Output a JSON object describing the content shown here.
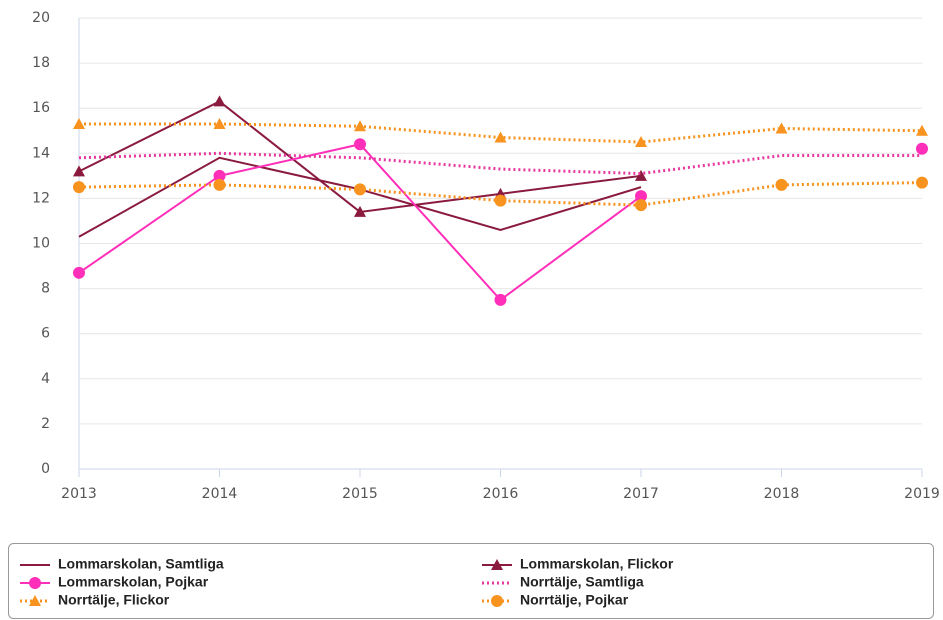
{
  "chart_data": {
    "type": "line",
    "x": [
      2013,
      2014,
      2015,
      2016,
      2017,
      2018,
      2019
    ],
    "xlim": [
      2013,
      2019
    ],
    "xticks": [
      2013,
      2014,
      2015,
      2016,
      2017,
      2018,
      2019
    ],
    "ylim": [
      0,
      20
    ],
    "yticks": [
      0,
      2,
      4,
      6,
      8,
      10,
      12,
      14,
      16,
      18,
      20
    ],
    "grid": true,
    "legend": "bottom",
    "series": [
      {
        "name": "Lommarskolan, Samtliga",
        "color": "#8b1a3f",
        "line_style": "solid",
        "marker": "none",
        "values": [
          10.3,
          13.8,
          12.4,
          10.6,
          12.5,
          null,
          null
        ]
      },
      {
        "name": "Lommarskolan, Flickor",
        "color": "#8b1a3f",
        "line_style": "solid",
        "marker": "triangle",
        "values": [
          13.2,
          16.3,
          11.4,
          12.2,
          13.0,
          null,
          null
        ]
      },
      {
        "name": "Lommarskolan, Pojkar",
        "color": "#ff2fb9",
        "line_style": "solid",
        "marker": "circle",
        "values": [
          8.7,
          13.0,
          14.4,
          7.5,
          12.1,
          null,
          14.2
        ]
      },
      {
        "name": "Norrtälje, Samtliga",
        "color": "#e8389f",
        "line_style": "dotted",
        "marker": "none",
        "values": [
          13.8,
          14.0,
          13.8,
          13.3,
          13.1,
          13.9,
          13.9
        ]
      },
      {
        "name": "Norrtälje, Flickor",
        "color": "#f7931e",
        "line_style": "dotted",
        "marker": "triangle",
        "values": [
          15.3,
          15.3,
          15.2,
          14.7,
          14.5,
          15.1,
          15.0
        ]
      },
      {
        "name": "Norrtälje, Pojkar",
        "color": "#f7931e",
        "line_style": "dotted",
        "marker": "circle",
        "values": [
          12.5,
          12.6,
          12.4,
          11.9,
          11.7,
          12.6,
          12.7
        ]
      }
    ]
  }
}
